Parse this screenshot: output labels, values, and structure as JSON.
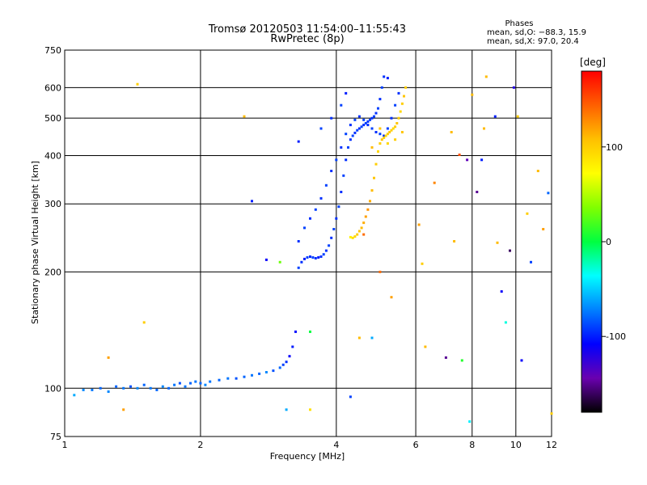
{
  "chart_data": {
    "type": "scatter",
    "title": "Tromsø 20120503 11:54:00–11:55:43",
    "subtitle": "RwPretec (8p)",
    "xlabel": "Frequency [MHz]",
    "ylabel": "Stationary phase Virtual Height [km]",
    "x_scale": "log",
    "y_scale": "log",
    "xlim": [
      1,
      12
    ],
    "ylim": [
      75,
      750
    ],
    "x_ticks": [
      1,
      2,
      4,
      6,
      8,
      10,
      12
    ],
    "y_ticks": [
      75,
      100,
      200,
      300,
      400,
      500,
      600,
      750
    ],
    "grid_x": [
      2,
      4,
      6,
      8,
      10
    ],
    "grid_y": [
      100,
      200,
      300,
      400,
      500,
      600
    ],
    "grid": true,
    "phases": {
      "heading": "Phases",
      "line1": "mean, sd,O: −88.3, 15.9",
      "line2": "mean, sd,X:  97.0, 20.4"
    },
    "colorbar": {
      "label": "[deg]",
      "ticks": [
        100,
        0,
        -100
      ],
      "range": [
        -180,
        180
      ],
      "colors": [
        "#000000",
        "#6a00b0",
        "#0000ff",
        "#0080ff",
        "#00ffff",
        "#00ff40",
        "#80ff00",
        "#ffff00",
        "#ffc000",
        "#ff6000",
        "#ff0000"
      ]
    },
    "series": [
      {
        "values": [
          [
            1.05,
            96,
            -60
          ],
          [
            1.1,
            99,
            -70
          ],
          [
            1.15,
            99,
            -75
          ],
          [
            1.2,
            100,
            -80
          ],
          [
            1.25,
            98,
            -70
          ],
          [
            1.3,
            101,
            -80
          ],
          [
            1.35,
            100,
            -75
          ],
          [
            1.4,
            101,
            -85
          ],
          [
            1.45,
            100,
            -70
          ],
          [
            1.5,
            102,
            -80
          ],
          [
            1.55,
            100,
            -75
          ],
          [
            1.6,
            99,
            -80
          ],
          [
            1.65,
            101,
            -70
          ],
          [
            1.7,
            100,
            -80
          ],
          [
            1.75,
            102,
            -75
          ],
          [
            1.8,
            103,
            -85
          ],
          [
            1.85,
            101,
            -75
          ],
          [
            1.9,
            103,
            -80
          ],
          [
            1.95,
            104,
            -75
          ],
          [
            2.0,
            103,
            -80
          ],
          [
            2.05,
            102,
            -70
          ],
          [
            2.1,
            104,
            -75
          ],
          [
            2.2,
            105,
            -80
          ],
          [
            2.3,
            106,
            -75
          ],
          [
            2.4,
            106,
            -85
          ],
          [
            2.5,
            107,
            -80
          ],
          [
            2.6,
            108,
            -75
          ],
          [
            2.7,
            109,
            -80
          ],
          [
            2.8,
            110,
            -70
          ],
          [
            2.9,
            111,
            -85
          ],
          [
            3.0,
            113,
            -80
          ],
          [
            3.05,
            115,
            -90
          ],
          [
            3.1,
            117,
            -95
          ],
          [
            3.15,
            121,
            -110
          ],
          [
            3.2,
            128,
            -100
          ],
          [
            3.25,
            140,
            -105
          ],
          [
            3.3,
            205,
            -90
          ],
          [
            3.35,
            212,
            -95
          ],
          [
            3.4,
            216,
            -100
          ],
          [
            3.45,
            218,
            -90
          ],
          [
            3.5,
            219,
            -95
          ],
          [
            3.55,
            218,
            -90
          ],
          [
            3.6,
            217,
            -95
          ],
          [
            3.65,
            218,
            -100
          ],
          [
            3.7,
            219,
            -95
          ],
          [
            3.75,
            222,
            -90
          ],
          [
            3.8,
            227,
            -95
          ],
          [
            3.85,
            234,
            -90
          ],
          [
            3.9,
            245,
            -95
          ],
          [
            3.95,
            258,
            -90
          ],
          [
            4.0,
            275,
            -95
          ],
          [
            4.05,
            295,
            -90
          ],
          [
            4.1,
            322,
            -95
          ],
          [
            4.15,
            355,
            -90
          ],
          [
            4.2,
            390,
            -95
          ],
          [
            4.25,
            420,
            -90
          ],
          [
            4.3,
            440,
            -95
          ],
          [
            4.35,
            450,
            -90
          ],
          [
            4.4,
            458,
            -95
          ],
          [
            4.45,
            465,
            -90
          ],
          [
            4.5,
            470,
            -95
          ],
          [
            4.55,
            475,
            -90
          ],
          [
            4.6,
            480,
            -95
          ],
          [
            4.65,
            485,
            -90
          ],
          [
            4.7,
            490,
            -95
          ],
          [
            4.75,
            495,
            -90
          ],
          [
            4.8,
            500,
            -95
          ],
          [
            4.85,
            505,
            -90
          ],
          [
            4.9,
            515,
            -95
          ],
          [
            4.95,
            530,
            -90
          ],
          [
            5.0,
            560,
            -95
          ],
          [
            5.05,
            600,
            -90
          ],
          [
            5.1,
            640,
            -95
          ],
          [
            3.3,
            240,
            -95
          ],
          [
            3.4,
            260,
            -90
          ],
          [
            3.5,
            275,
            -95
          ],
          [
            3.6,
            290,
            -90
          ],
          [
            3.7,
            310,
            -95
          ],
          [
            3.8,
            335,
            -90
          ],
          [
            3.9,
            365,
            -95
          ],
          [
            4.0,
            390,
            -90
          ],
          [
            4.1,
            420,
            -95
          ],
          [
            4.2,
            455,
            -90
          ],
          [
            4.3,
            480,
            -95
          ],
          [
            4.4,
            495,
            -90
          ],
          [
            4.5,
            505,
            -95
          ],
          [
            4.6,
            495,
            -90
          ],
          [
            4.7,
            480,
            -95
          ],
          [
            4.8,
            470,
            -90
          ],
          [
            4.9,
            460,
            -95
          ],
          [
            5.0,
            455,
            -90
          ],
          [
            5.1,
            450,
            -95
          ],
          [
            5.2,
            470,
            -90
          ],
          [
            5.3,
            500,
            -95
          ],
          [
            5.4,
            540,
            -90
          ],
          [
            5.5,
            580,
            -95
          ],
          [
            4.2,
            580,
            -100
          ],
          [
            4.1,
            540,
            -90
          ],
          [
            3.9,
            500,
            -95
          ],
          [
            3.7,
            470,
            -90
          ]
        ]
      },
      {
        "values": [
          [
            4.3,
            246,
            80
          ],
          [
            4.35,
            245,
            90
          ],
          [
            4.4,
            247,
            95
          ],
          [
            4.45,
            250,
            100
          ],
          [
            4.5,
            255,
            105
          ],
          [
            4.55,
            260,
            110
          ],
          [
            4.6,
            268,
            115
          ],
          [
            4.65,
            278,
            120
          ],
          [
            4.7,
            290,
            125
          ],
          [
            4.75,
            305,
            115
          ],
          [
            4.8,
            325,
            110
          ],
          [
            4.85,
            350,
            105
          ],
          [
            4.9,
            380,
            100
          ],
          [
            4.95,
            410,
            95
          ],
          [
            5.0,
            430,
            100
          ],
          [
            5.05,
            440,
            105
          ],
          [
            5.1,
            445,
            100
          ],
          [
            5.15,
            450,
            95
          ],
          [
            5.2,
            455,
            100
          ],
          [
            5.25,
            460,
            105
          ],
          [
            5.3,
            465,
            100
          ],
          [
            5.35,
            470,
            95
          ],
          [
            5.4,
            475,
            100
          ],
          [
            5.45,
            485,
            105
          ],
          [
            5.5,
            500,
            100
          ],
          [
            5.55,
            520,
            95
          ],
          [
            5.6,
            545,
            100
          ],
          [
            5.65,
            570,
            105
          ],
          [
            5.7,
            600,
            100
          ],
          [
            4.6,
            250,
            140
          ],
          [
            4.8,
            420,
            110
          ],
          [
            5.0,
            470,
            105
          ],
          [
            5.2,
            430,
            95
          ],
          [
            5.4,
            440,
            100
          ],
          [
            5.6,
            460,
            105
          ]
        ]
      },
      {
        "values": [
          [
            1.45,
            612,
            100
          ],
          [
            1.5,
            148,
            100
          ],
          [
            1.25,
            120,
            120
          ],
          [
            1.35,
            88,
            120
          ],
          [
            2.5,
            505,
            110
          ],
          [
            2.6,
            305,
            -100
          ],
          [
            2.8,
            215,
            -110
          ],
          [
            3.0,
            212,
            30
          ],
          [
            3.1,
            88,
            -60
          ],
          [
            3.3,
            435,
            -100
          ],
          [
            3.5,
            88,
            90
          ],
          [
            3.5,
            140,
            0
          ],
          [
            4.3,
            95,
            -90
          ],
          [
            4.5,
            135,
            110
          ],
          [
            4.8,
            135,
            -60
          ],
          [
            5.0,
            200,
            140
          ],
          [
            5.3,
            172,
            120
          ],
          [
            5.2,
            635,
            -100
          ],
          [
            6.1,
            265,
            120
          ],
          [
            6.2,
            210,
            100
          ],
          [
            6.3,
            128,
            110
          ],
          [
            6.6,
            340,
            130
          ],
          [
            7.0,
            120,
            -150
          ],
          [
            7.2,
            460,
            110
          ],
          [
            7.3,
            240,
            110
          ],
          [
            7.5,
            402,
            150
          ],
          [
            7.6,
            118,
            10
          ],
          [
            7.8,
            390,
            -140
          ],
          [
            7.9,
            82,
            -40
          ],
          [
            8.2,
            322,
            -150
          ],
          [
            8.5,
            470,
            110
          ],
          [
            8.6,
            640,
            110
          ],
          [
            9.0,
            505,
            -100
          ],
          [
            9.1,
            238,
            110
          ],
          [
            9.3,
            178,
            -110
          ],
          [
            9.5,
            148,
            -30
          ],
          [
            9.7,
            227,
            -160
          ],
          [
            9.9,
            600,
            -120
          ],
          [
            10.1,
            505,
            100
          ],
          [
            10.3,
            118,
            -110
          ],
          [
            10.6,
            283,
            100
          ],
          [
            10.8,
            212,
            -90
          ],
          [
            11.2,
            365,
            110
          ],
          [
            11.5,
            258,
            120
          ],
          [
            11.8,
            320,
            -80
          ],
          [
            12.0,
            86,
            100
          ],
          [
            8.0,
            575,
            110
          ],
          [
            8.4,
            390,
            -100
          ]
        ]
      }
    ]
  }
}
